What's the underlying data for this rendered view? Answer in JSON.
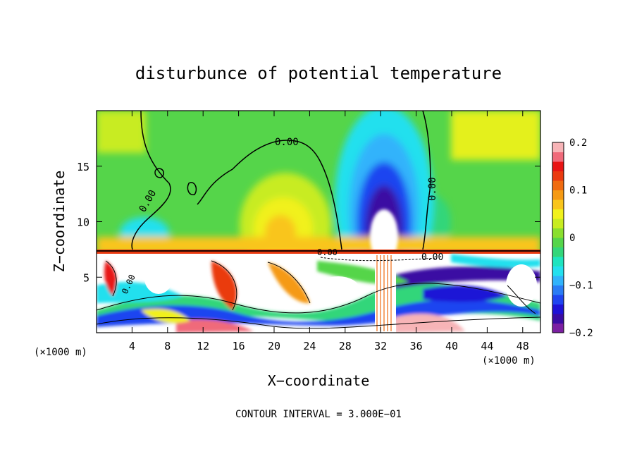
{
  "chart_data": {
    "type": "heatmap",
    "title": "disturbunce of potential temperature",
    "xlabel": "X−coordinate",
    "ylabel": "Z−coordinate",
    "x_unit_label": "(×1000 m)",
    "x_unit_label_right": "(×1000 m)",
    "footer": "CONTOUR INTERVAL = 3.000E−01",
    "xlim": [
      0,
      50
    ],
    "ylim": [
      0,
      20
    ],
    "x_ticks": [
      4,
      8,
      12,
      16,
      20,
      24,
      28,
      32,
      36,
      40,
      44,
      48
    ],
    "x_tick_labels": [
      "4",
      "8",
      "12",
      "16",
      "20",
      "24",
      "28",
      "32",
      "36",
      "40",
      "44",
      "48"
    ],
    "y_ticks": [
      5,
      10,
      15
    ],
    "y_tick_labels": [
      "5",
      "10",
      "15"
    ],
    "colorbar": {
      "range": [
        -0.2,
        0.2
      ],
      "tick_values": [
        0.2,
        0.1,
        0,
        -0.1,
        -0.2
      ],
      "tick_labels": [
        "0.2",
        "0.1",
        "0",
        "−0.1",
        "−0.2"
      ],
      "colors_bottom_to_top": [
        "#7b1fa2",
        "#3a0ca3",
        "#1e12d6",
        "#1f45f0",
        "#2a7cf5",
        "#31b3fb",
        "#23e0ee",
        "#1ee4bf",
        "#33d67a",
        "#55d54a",
        "#8adf2e",
        "#c8ec20",
        "#f1f11c",
        "#f9c51c",
        "#f59a14",
        "#f06b10",
        "#ea3a10",
        "#e81414",
        "#f06a7a",
        "#f7b4b7"
      ]
    },
    "contour_labels": [
      "0.00",
      "0.00",
      "0.00",
      "0.00",
      "0.00",
      "0.00"
    ],
    "grid": false,
    "legend": "right colorbar"
  }
}
